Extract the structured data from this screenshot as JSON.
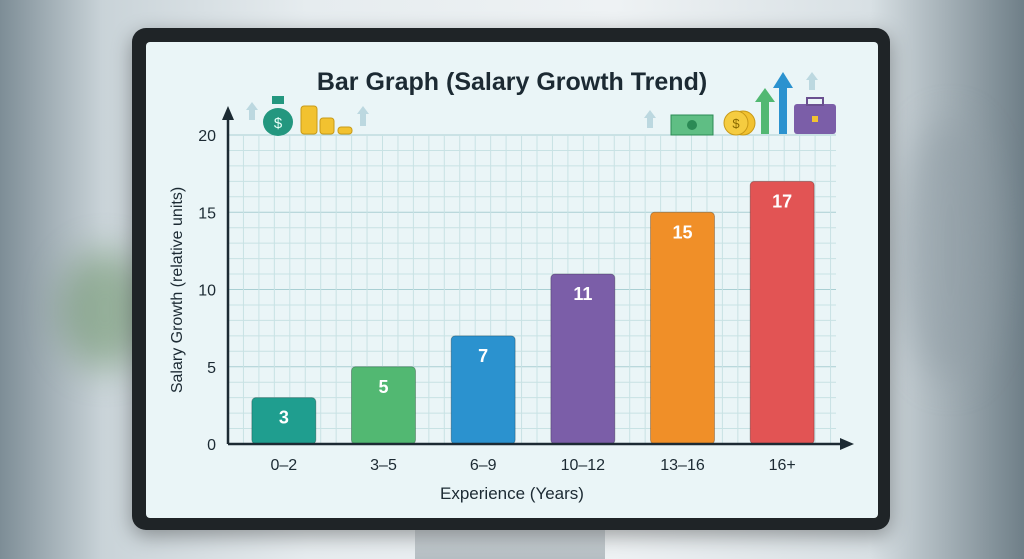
{
  "chart_data": {
    "type": "bar",
    "title": "Bar Graph (Salary Growth Trend)",
    "xlabel": "Experience (Years)",
    "ylabel": "Salary Growth (relative units)",
    "categories": [
      "0–2",
      "3–5",
      "6–9",
      "10–12",
      "13–16",
      "16+"
    ],
    "values": [
      3,
      5,
      7,
      11,
      15,
      17
    ],
    "colors": [
      "#1f9e8f",
      "#52b872",
      "#2b92cf",
      "#7b5ea8",
      "#f08f28",
      "#e25454"
    ],
    "ylim": [
      0,
      20
    ],
    "yticks": [
      0,
      5,
      10,
      15,
      20
    ],
    "grid": true,
    "data_labels": true,
    "legend": "none"
  },
  "decorations": [
    "money-bag-icon",
    "coin-stack-icon",
    "banknote-icon",
    "coin-icon",
    "growth-arrow-icon",
    "briefcase-icon"
  ]
}
